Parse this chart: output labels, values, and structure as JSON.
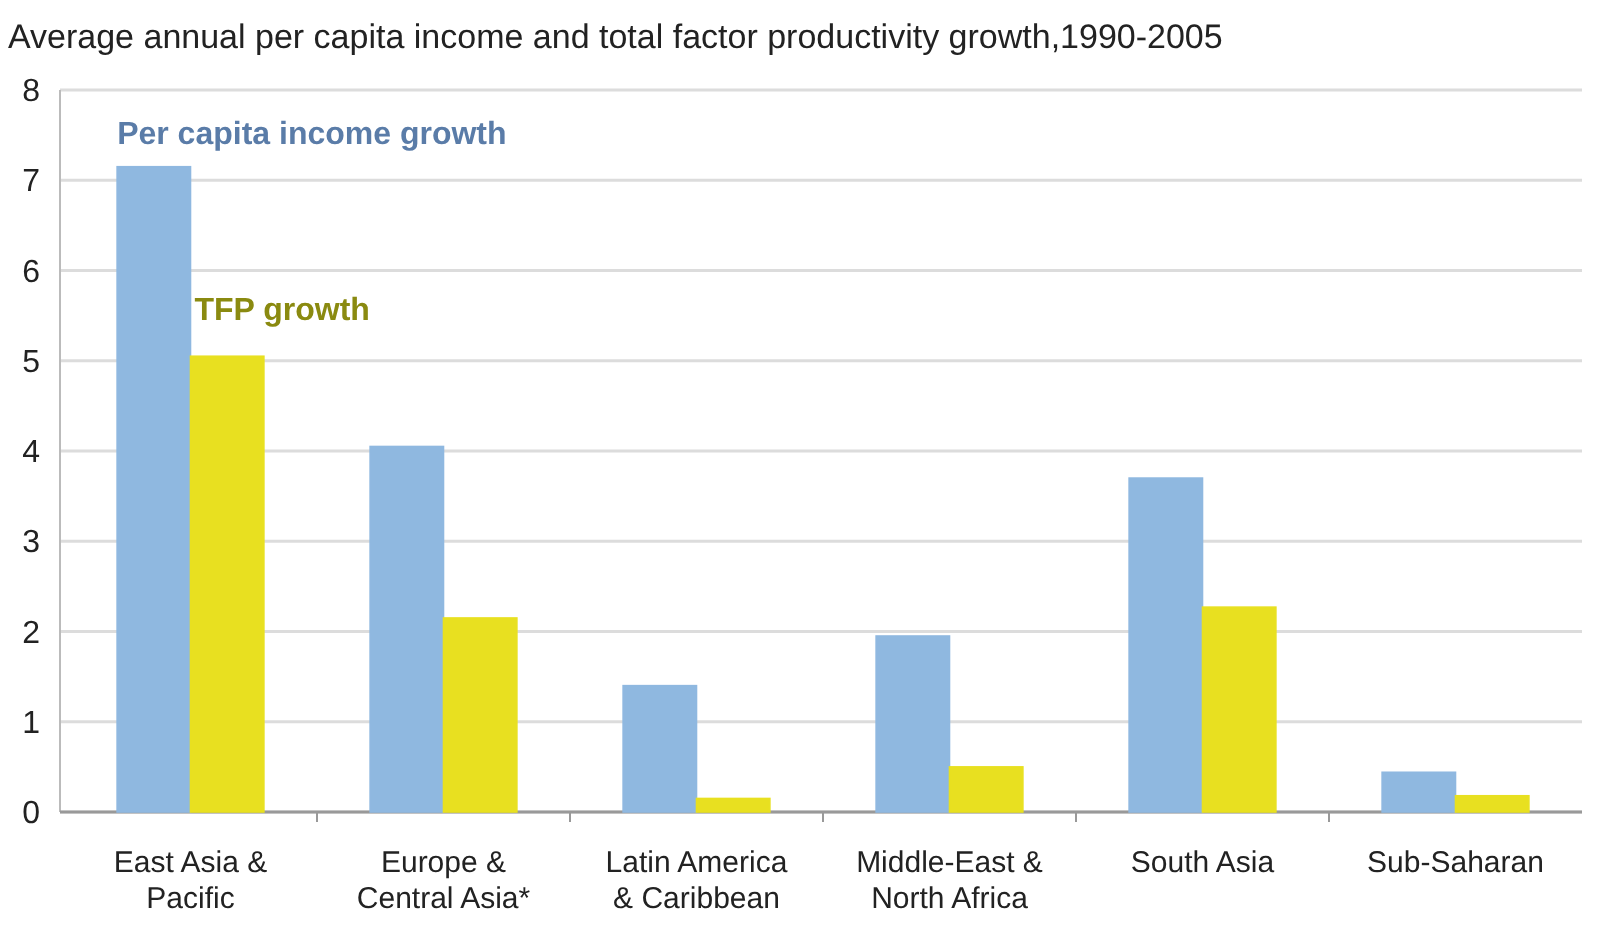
{
  "chart_data": {
    "type": "bar",
    "title": "Average annual per capita income and total factor productivity growth,1990-2005",
    "categories": [
      "East Asia & Pacific",
      "Europe & Central Asia*",
      "Latin America & Caribbean",
      "Middle-East & North Africa",
      "South Asia",
      "Sub-Saharan"
    ],
    "series": [
      {
        "name": "Per capita income growth",
        "color": "#8fb8e0",
        "values": [
          7.15,
          4.05,
          1.4,
          1.95,
          3.7,
          0.44
        ]
      },
      {
        "name": "TFP growth",
        "color": "#e8e020",
        "values": [
          5.05,
          2.15,
          0.15,
          0.5,
          2.27,
          0.18
        ]
      }
    ],
    "ylim": [
      0,
      8
    ],
    "yticks": [
      0,
      1,
      2,
      3,
      4,
      5,
      6,
      7,
      8
    ],
    "grid": "y",
    "legend": "top left"
  }
}
